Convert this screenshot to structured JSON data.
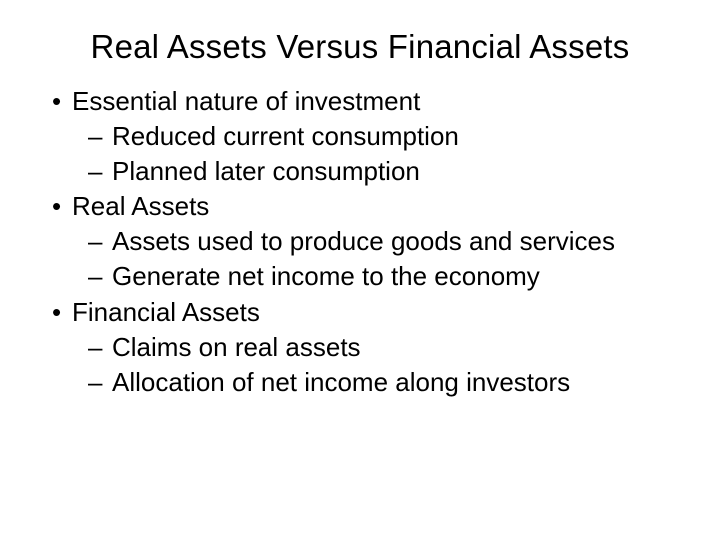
{
  "slide": {
    "title": "Real Assets Versus Financial Assets",
    "bullets": [
      {
        "text": "Essential nature of investment",
        "sub": [
          "Reduced current consumption",
          "Planned later consumption"
        ]
      },
      {
        "text": "Real Assets",
        "sub": [
          "Assets used to produce goods and services",
          "Generate net income to the economy"
        ]
      },
      {
        "text": "Financial Assets",
        "sub": [
          "Claims on real assets",
          "Allocation of net income along investors"
        ]
      }
    ]
  }
}
